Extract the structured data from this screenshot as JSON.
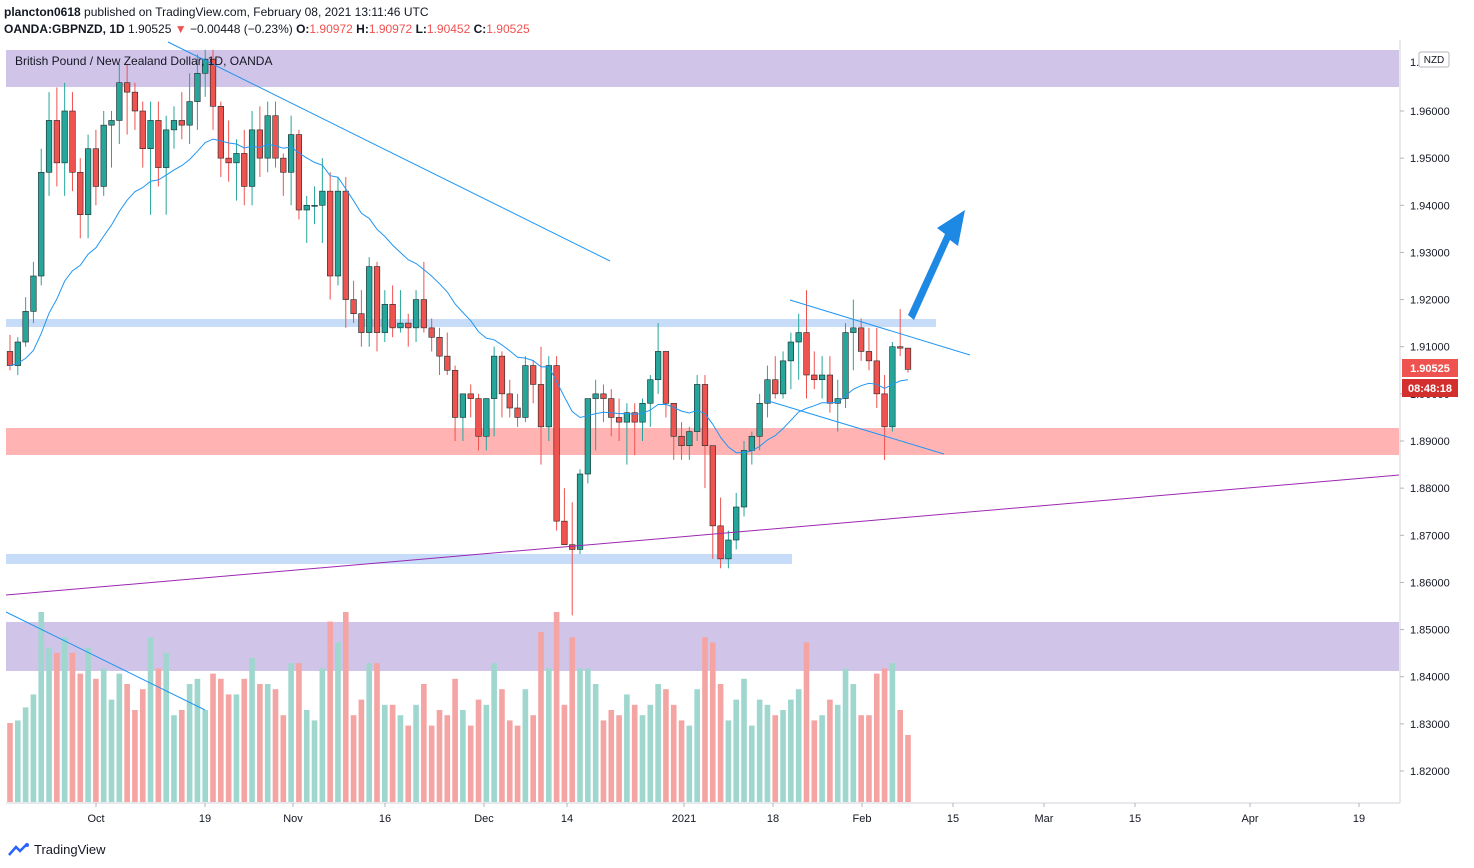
{
  "header": {
    "line1": {
      "user": "plancton0618",
      "text": "published on TradingView.com, February 08, 2021 13:11:46 UTC"
    },
    "line2": {
      "symbol": "OANDA:GBPNZD, 1D",
      "last": "1.90525",
      "arrow": "▼",
      "change": "−0.00448 (−0.23%)",
      "o_label": "O:",
      "o_value": "1.90972",
      "h_label": "H:",
      "h_value": "1.90972",
      "l_label": "L:",
      "l_value": "1.90452",
      "c_label": "C:",
      "c_value": "1.90525"
    }
  },
  "legend": "British Pound / New Zealand Dollar, 1D, OANDA",
  "footer": {
    "brand": "TradingView",
    "icon": "tradingview-logo-icon"
  },
  "colors": {
    "up": "#26a69a",
    "down": "#ef5350",
    "ema": "#2196f3",
    "upVol": "#9fd7cf",
    "downVol": "#f4a5a3",
    "purpleZone": "#d1c4e9",
    "redZone": "#ffb3b3",
    "blueZone": "#c6dcf8",
    "purpleLine": "#9c27b0",
    "trendLine": "#2196f3",
    "arrow": "#1e88e5"
  },
  "chart_data": {
    "type": "candlestick",
    "symbol": "GBPNZD",
    "timeframe": "1D",
    "currency_badge": "NZD",
    "y_ticks": [
      "1.96000",
      "1.95000",
      "1.94000",
      "1.93000",
      "1.92000",
      "1.91000",
      "1.90000",
      "1.89000",
      "1.88000",
      "1.87000",
      "1.86000",
      "1.85000",
      "1.84000",
      "1.83000",
      "1.82000"
    ],
    "y_top_partial": "1.",
    "ylim": [
      1.8155,
      1.9735
    ],
    "x_ticks": [
      "Oct",
      "19",
      "Nov",
      "16",
      "Dec",
      "14",
      "2021",
      "18",
      "Feb",
      "15",
      "Mar",
      "15",
      "Apr",
      "19"
    ],
    "price_label": "1.90525",
    "countdown_label": "08:48:18",
    "candles_approx": [
      {
        "o": 1.909,
        "h": 1.9125,
        "l": 1.905,
        "c": 1.906
      },
      {
        "o": 1.906,
        "h": 1.912,
        "l": 1.904,
        "c": 1.911
      },
      {
        "o": 1.911,
        "h": 1.9205,
        "l": 1.91,
        "c": 1.9175
      },
      {
        "o": 1.9175,
        "h": 1.928,
        "l": 1.915,
        "c": 1.925
      },
      {
        "o": 1.925,
        "h": 1.952,
        "l": 1.923,
        "c": 1.947
      },
      {
        "o": 1.947,
        "h": 1.964,
        "l": 1.942,
        "c": 1.958
      },
      {
        "o": 1.958,
        "h": 1.965,
        "l": 1.944,
        "c": 1.949
      },
      {
        "o": 1.949,
        "h": 1.966,
        "l": 1.942,
        "c": 1.96
      },
      {
        "o": 1.96,
        "h": 1.964,
        "l": 1.943,
        "c": 1.947
      },
      {
        "o": 1.947,
        "h": 1.95,
        "l": 1.933,
        "c": 1.938
      },
      {
        "o": 1.938,
        "h": 1.955,
        "l": 1.933,
        "c": 1.952
      },
      {
        "o": 1.952,
        "h": 1.956,
        "l": 1.94,
        "c": 1.944
      },
      {
        "o": 1.944,
        "h": 1.96,
        "l": 1.942,
        "c": 1.957
      },
      {
        "o": 1.957,
        "h": 1.96,
        "l": 1.948,
        "c": 1.958
      },
      {
        "o": 1.958,
        "h": 1.97,
        "l": 1.953,
        "c": 1.966
      },
      {
        "o": 1.966,
        "h": 1.97,
        "l": 1.955,
        "c": 1.964
      },
      {
        "o": 1.964,
        "h": 1.966,
        "l": 1.956,
        "c": 1.96
      },
      {
        "o": 1.96,
        "h": 1.962,
        "l": 1.948,
        "c": 1.952
      },
      {
        "o": 1.952,
        "h": 1.962,
        "l": 1.938,
        "c": 1.958
      },
      {
        "o": 1.958,
        "h": 1.962,
        "l": 1.944,
        "c": 1.948
      },
      {
        "o": 1.948,
        "h": 1.959,
        "l": 1.938,
        "c": 1.956
      },
      {
        "o": 1.956,
        "h": 1.961,
        "l": 1.952,
        "c": 1.958
      },
      {
        "o": 1.958,
        "h": 1.964,
        "l": 1.954,
        "c": 1.957
      },
      {
        "o": 1.957,
        "h": 1.968,
        "l": 1.953,
        "c": 1.962
      },
      {
        "o": 1.962,
        "h": 1.972,
        "l": 1.956,
        "c": 1.968
      },
      {
        "o": 1.968,
        "h": 1.973,
        "l": 1.963,
        "c": 1.971
      },
      {
        "o": 1.971,
        "h": 1.973,
        "l": 1.956,
        "c": 1.961
      },
      {
        "o": 1.961,
        "h": 1.962,
        "l": 1.946,
        "c": 1.95
      },
      {
        "o": 1.95,
        "h": 1.958,
        "l": 1.945,
        "c": 1.949
      },
      {
        "o": 1.949,
        "h": 1.954,
        "l": 1.941,
        "c": 1.951
      },
      {
        "o": 1.951,
        "h": 1.956,
        "l": 1.94,
        "c": 1.944
      },
      {
        "o": 1.944,
        "h": 1.96,
        "l": 1.94,
        "c": 1.956
      },
      {
        "o": 1.956,
        "h": 1.961,
        "l": 1.946,
        "c": 1.95
      },
      {
        "o": 1.95,
        "h": 1.962,
        "l": 1.947,
        "c": 1.959
      },
      {
        "o": 1.959,
        "h": 1.962,
        "l": 1.948,
        "c": 1.95
      },
      {
        "o": 1.95,
        "h": 1.951,
        "l": 1.942,
        "c": 1.947
      },
      {
        "o": 1.947,
        "h": 1.959,
        "l": 1.94,
        "c": 1.955
      },
      {
        "o": 1.955,
        "h": 1.956,
        "l": 1.937,
        "c": 1.939
      },
      {
        "o": 1.939,
        "h": 1.942,
        "l": 1.932,
        "c": 1.94
      },
      {
        "o": 1.94,
        "h": 1.944,
        "l": 1.936,
        "c": 1.94
      },
      {
        "o": 1.94,
        "h": 1.95,
        "l": 1.932,
        "c": 1.943
      },
      {
        "o": 1.943,
        "h": 1.947,
        "l": 1.92,
        "c": 1.925
      },
      {
        "o": 1.925,
        "h": 1.946,
        "l": 1.923,
        "c": 1.943
      },
      {
        "o": 1.943,
        "h": 1.946,
        "l": 1.914,
        "c": 1.92
      },
      {
        "o": 1.92,
        "h": 1.924,
        "l": 1.915,
        "c": 1.917
      },
      {
        "o": 1.917,
        "h": 1.922,
        "l": 1.91,
        "c": 1.913
      },
      {
        "o": 1.913,
        "h": 1.929,
        "l": 1.91,
        "c": 1.927
      },
      {
        "o": 1.927,
        "h": 1.928,
        "l": 1.909,
        "c": 1.913
      },
      {
        "o": 1.913,
        "h": 1.922,
        "l": 1.911,
        "c": 1.919
      },
      {
        "o": 1.919,
        "h": 1.923,
        "l": 1.912,
        "c": 1.914
      },
      {
        "o": 1.914,
        "h": 1.922,
        "l": 1.913,
        "c": 1.915
      },
      {
        "o": 1.915,
        "h": 1.917,
        "l": 1.91,
        "c": 1.914
      },
      {
        "o": 1.914,
        "h": 1.922,
        "l": 1.911,
        "c": 1.92
      },
      {
        "o": 1.92,
        "h": 1.928,
        "l": 1.913,
        "c": 1.914
      },
      {
        "o": 1.914,
        "h": 1.916,
        "l": 1.909,
        "c": 1.912
      },
      {
        "o": 1.912,
        "h": 1.914,
        "l": 1.904,
        "c": 1.908
      },
      {
        "o": 1.908,
        "h": 1.913,
        "l": 1.904,
        "c": 1.905
      },
      {
        "o": 1.905,
        "h": 1.906,
        "l": 1.89,
        "c": 1.895
      },
      {
        "o": 1.895,
        "h": 1.9,
        "l": 1.89,
        "c": 1.9
      },
      {
        "o": 1.9,
        "h": 1.902,
        "l": 1.895,
        "c": 1.899
      },
      {
        "o": 1.899,
        "h": 1.9,
        "l": 1.888,
        "c": 1.891
      },
      {
        "o": 1.891,
        "h": 1.899,
        "l": 1.888,
        "c": 1.899
      },
      {
        "o": 1.899,
        "h": 1.91,
        "l": 1.891,
        "c": 1.908
      },
      {
        "o": 1.908,
        "h": 1.909,
        "l": 1.895,
        "c": 1.9
      },
      {
        "o": 1.9,
        "h": 1.903,
        "l": 1.895,
        "c": 1.897
      },
      {
        "o": 1.897,
        "h": 1.9,
        "l": 1.893,
        "c": 1.895
      },
      {
        "o": 1.895,
        "h": 1.908,
        "l": 1.894,
        "c": 1.906
      },
      {
        "o": 1.906,
        "h": 1.907,
        "l": 1.898,
        "c": 1.902
      },
      {
        "o": 1.902,
        "h": 1.91,
        "l": 1.885,
        "c": 1.893
      },
      {
        "o": 1.893,
        "h": 1.908,
        "l": 1.89,
        "c": 1.906
      },
      {
        "o": 1.906,
        "h": 1.908,
        "l": 1.871,
        "c": 1.873
      },
      {
        "o": 1.873,
        "h": 1.88,
        "l": 1.869,
        "c": 1.868
      },
      {
        "o": 1.868,
        "h": 1.877,
        "l": 1.853,
        "c": 1.867
      },
      {
        "o": 1.867,
        "h": 1.884,
        "l": 1.866,
        "c": 1.883
      },
      {
        "o": 1.883,
        "h": 1.899,
        "l": 1.881,
        "c": 1.899
      },
      {
        "o": 1.899,
        "h": 1.903,
        "l": 1.888,
        "c": 1.9
      },
      {
        "o": 1.9,
        "h": 1.902,
        "l": 1.894,
        "c": 1.899
      },
      {
        "o": 1.899,
        "h": 1.901,
        "l": 1.891,
        "c": 1.895
      },
      {
        "o": 1.895,
        "h": 1.899,
        "l": 1.89,
        "c": 1.894
      },
      {
        "o": 1.894,
        "h": 1.898,
        "l": 1.885,
        "c": 1.896
      },
      {
        "o": 1.896,
        "h": 1.898,
        "l": 1.887,
        "c": 1.894
      },
      {
        "o": 1.894,
        "h": 1.899,
        "l": 1.89,
        "c": 1.898
      },
      {
        "o": 1.898,
        "h": 1.904,
        "l": 1.893,
        "c": 1.903
      },
      {
        "o": 1.903,
        "h": 1.915,
        "l": 1.9,
        "c": 1.909
      },
      {
        "o": 1.909,
        "h": 1.909,
        "l": 1.895,
        "c": 1.898
      },
      {
        "o": 1.898,
        "h": 1.897,
        "l": 1.886,
        "c": 1.891
      },
      {
        "o": 1.891,
        "h": 1.894,
        "l": 1.886,
        "c": 1.889
      },
      {
        "o": 1.889,
        "h": 1.893,
        "l": 1.886,
        "c": 1.892
      },
      {
        "o": 1.892,
        "h": 1.904,
        "l": 1.89,
        "c": 1.902
      },
      {
        "o": 1.902,
        "h": 1.904,
        "l": 1.88,
        "c": 1.889
      },
      {
        "o": 1.889,
        "h": 1.888,
        "l": 1.865,
        "c": 1.872
      },
      {
        "o": 1.872,
        "h": 1.878,
        "l": 1.863,
        "c": 1.865
      },
      {
        "o": 1.865,
        "h": 1.871,
        "l": 1.863,
        "c": 1.869
      },
      {
        "o": 1.869,
        "h": 1.879,
        "l": 1.867,
        "c": 1.876
      },
      {
        "o": 1.876,
        "h": 1.89,
        "l": 1.874,
        "c": 1.888
      },
      {
        "o": 1.888,
        "h": 1.892,
        "l": 1.885,
        "c": 1.891
      },
      {
        "o": 1.891,
        "h": 1.9,
        "l": 1.888,
        "c": 1.898
      },
      {
        "o": 1.898,
        "h": 1.906,
        "l": 1.895,
        "c": 1.903
      },
      {
        "o": 1.903,
        "h": 1.908,
        "l": 1.899,
        "c": 1.9
      },
      {
        "o": 1.9,
        "h": 1.909,
        "l": 1.899,
        "c": 1.907
      },
      {
        "o": 1.907,
        "h": 1.913,
        "l": 1.901,
        "c": 1.911
      },
      {
        "o": 1.911,
        "h": 1.917,
        "l": 1.903,
        "c": 1.913
      },
      {
        "o": 1.913,
        "h": 1.922,
        "l": 1.899,
        "c": 1.904
      },
      {
        "o": 1.904,
        "h": 1.909,
        "l": 1.901,
        "c": 1.903
      },
      {
        "o": 1.903,
        "h": 1.908,
        "l": 1.899,
        "c": 1.904
      },
      {
        "o": 1.904,
        "h": 1.908,
        "l": 1.896,
        "c": 1.898
      },
      {
        "o": 1.898,
        "h": 1.903,
        "l": 1.892,
        "c": 1.899
      },
      {
        "o": 1.899,
        "h": 1.915,
        "l": 1.897,
        "c": 1.913
      },
      {
        "o": 1.913,
        "h": 1.92,
        "l": 1.905,
        "c": 1.914
      },
      {
        "o": 1.914,
        "h": 1.916,
        "l": 1.907,
        "c": 1.909
      },
      {
        "o": 1.909,
        "h": 1.914,
        "l": 1.905,
        "c": 1.907
      },
      {
        "o": 1.907,
        "h": 1.914,
        "l": 1.897,
        "c": 1.9
      },
      {
        "o": 1.9,
        "h": 1.904,
        "l": 1.886,
        "c": 1.893
      },
      {
        "o": 1.893,
        "h": 1.911,
        "l": 1.892,
        "c": 1.91
      },
      {
        "o": 1.91,
        "h": 1.918,
        "l": 1.908,
        "c": 1.9097
      },
      {
        "o": 1.9097,
        "h": 1.9097,
        "l": 1.9045,
        "c": 1.9052
      }
    ]
  }
}
